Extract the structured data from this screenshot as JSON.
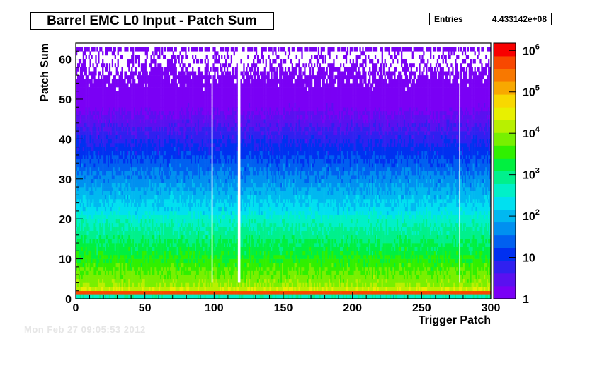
{
  "chart_data": {
    "type": "heatmap",
    "title": "Barrel EMC L0 Input - Patch Sum",
    "xlabel": "Trigger Patch",
    "ylabel": "Patch Sum",
    "xlim": [
      0,
      300
    ],
    "ylim": [
      0,
      64
    ],
    "x_ticks": [
      "0",
      "50",
      "100",
      "150",
      "200",
      "250",
      "300"
    ],
    "y_ticks": [
      "0",
      "10",
      "20",
      "30",
      "40",
      "50",
      "60"
    ],
    "z_scale": "log",
    "zlim": [
      1,
      1500000
    ],
    "z_ticks": [
      {
        "value": 1,
        "base": "1",
        "exp": ""
      },
      {
        "value": 10,
        "base": "10",
        "exp": ""
      },
      {
        "value": 100,
        "base": "10",
        "exp": "2"
      },
      {
        "value": 1000,
        "base": "10",
        "exp": "3"
      },
      {
        "value": 10000,
        "base": "10",
        "exp": "4"
      },
      {
        "value": 100000,
        "base": "10",
        "exp": "5"
      },
      {
        "value": 1000000,
        "base": "10",
        "exp": "6"
      }
    ],
    "grid": false,
    "palette": [
      "#7a00f5",
      "#5a10f0",
      "#3020f0",
      "#0030f0",
      "#0060f0",
      "#0090f0",
      "#00b8f0",
      "#00e0f0",
      "#00f0c8",
      "#00f08c",
      "#00f040",
      "#30f000",
      "#78f000",
      "#b8f000",
      "#e8f000",
      "#f8d800",
      "#f8a800",
      "#f87800",
      "#f84800",
      "#f80000"
    ],
    "cells_description": "dense band at low patch sums (0-3), rapidly falling occupancy toward patch sum 63; overflow row at 62-63 populated"
  },
  "stats": {
    "entries_label": "Entries",
    "entries_value": "4.433142e+08"
  },
  "footer": {
    "text": "Mon Feb 27 09:05:53 2012"
  }
}
